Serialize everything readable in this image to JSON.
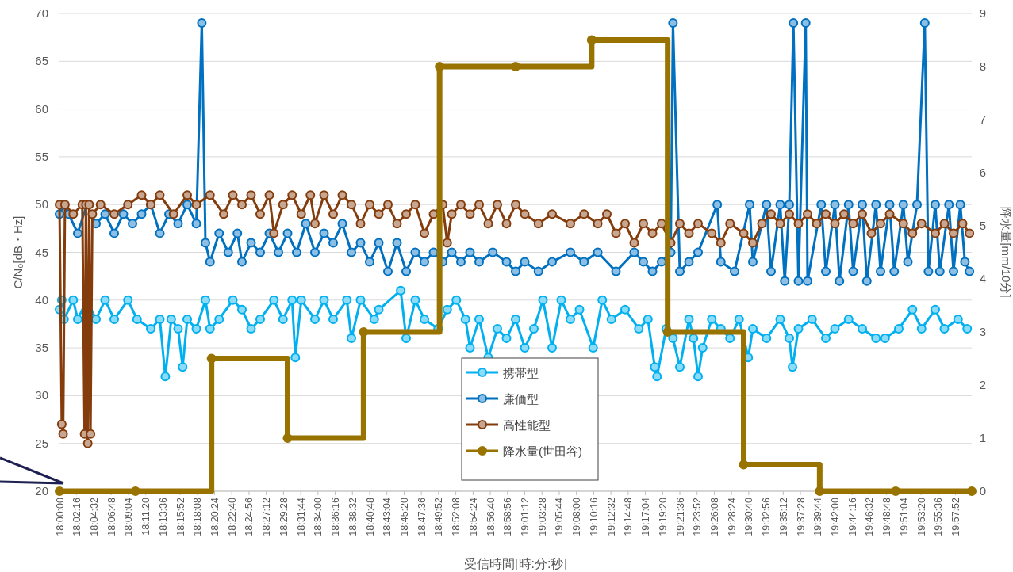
{
  "chart_data": {
    "type": "line",
    "xlabel": "受信時間[時:分:秒]",
    "ylabel": "C/N₀[dB・Hz]",
    "y2label": "降水量[mm/10分]",
    "xlim": [
      18,
      20
    ],
    "xticks": [
      {
        "value": 18,
        "label": "18:00:00"
      },
      {
        "value": 18.0378,
        "label": "18:02:16"
      },
      {
        "value": 18.0756,
        "label": "18:04:32"
      },
      {
        "value": 18.1133,
        "label": "18:06:48"
      },
      {
        "value": 18.1511,
        "label": "18:09:04"
      },
      {
        "value": 18.1889,
        "label": "18:11:20"
      },
      {
        "value": 18.2267,
        "label": "18:13:36"
      },
      {
        "value": 18.2644,
        "label": "18:15:52"
      },
      {
        "value": 18.3022,
        "label": "18:18:08"
      },
      {
        "value": 18.34,
        "label": "18:20:24"
      },
      {
        "value": 18.3778,
        "label": "18:22:40"
      },
      {
        "value": 18.4156,
        "label": "18:24:56"
      },
      {
        "value": 18.4533,
        "label": "18:27:12"
      },
      {
        "value": 18.4911,
        "label": "18:29:28"
      },
      {
        "value": 18.5289,
        "label": "18:31:44"
      },
      {
        "value": 18.5667,
        "label": "18:34:00"
      },
      {
        "value": 18.6044,
        "label": "18:36:16"
      },
      {
        "value": 18.6422,
        "label": "18:38:32"
      },
      {
        "value": 18.68,
        "label": "18:40:48"
      },
      {
        "value": 18.7178,
        "label": "18:43:04"
      },
      {
        "value": 18.7556,
        "label": "18:45:20"
      },
      {
        "value": 18.7933,
        "label": "18:47:36"
      },
      {
        "value": 18.8311,
        "label": "18:49:52"
      },
      {
        "value": 18.8689,
        "label": "18:52:08"
      },
      {
        "value": 18.9067,
        "label": "18:54:24"
      },
      {
        "value": 18.9444,
        "label": "18:56:40"
      },
      {
        "value": 18.9822,
        "label": "18:58:56"
      },
      {
        "value": 19.02,
        "label": "19:01:12"
      },
      {
        "value": 19.0578,
        "label": "19:03:28"
      },
      {
        "value": 19.0956,
        "label": "19:05:44"
      },
      {
        "value": 19.1333,
        "label": "19:08:00"
      },
      {
        "value": 19.1711,
        "label": "19:10:16"
      },
      {
        "value": 19.2089,
        "label": "19:12:32"
      },
      {
        "value": 19.2467,
        "label": "19:14:48"
      },
      {
        "value": 19.2844,
        "label": "19:17:04"
      },
      {
        "value": 19.3222,
        "label": "19:19:20"
      },
      {
        "value": 19.36,
        "label": "19:21:36"
      },
      {
        "value": 19.3978,
        "label": "19:23:52"
      },
      {
        "value": 19.4356,
        "label": "19:26:08"
      },
      {
        "value": 19.4733,
        "label": "19:28:24"
      },
      {
        "value": 19.5111,
        "label": "19:30:40"
      },
      {
        "value": 19.5489,
        "label": "19:32:56"
      },
      {
        "value": 19.5867,
        "label": "19:35:12"
      },
      {
        "value": 19.6244,
        "label": "19:37:28"
      },
      {
        "value": 19.6622,
        "label": "19:39:44"
      },
      {
        "value": 19.7,
        "label": "19:42:00"
      },
      {
        "value": 19.7378,
        "label": "19:44:16"
      },
      {
        "value": 19.7756,
        "label": "19:46:32"
      },
      {
        "value": 19.8133,
        "label": "19:48:48"
      },
      {
        "value": 19.8511,
        "label": "19:51:04"
      },
      {
        "value": 19.8889,
        "label": "19:53:20"
      },
      {
        "value": 19.9267,
        "label": "19:55:36"
      },
      {
        "value": 19.9644,
        "label": "19:57:52"
      }
    ],
    "ylim": [
      20,
      70
    ],
    "yticks": [
      20,
      25,
      30,
      35,
      40,
      45,
      50,
      55,
      60,
      65,
      70
    ],
    "y2lim": [
      0,
      9
    ],
    "y2ticks": [
      0,
      1,
      2,
      3,
      4,
      5,
      6,
      7,
      8,
      9
    ],
    "grid": "y",
    "legend": "bottom",
    "marker": "circle",
    "series": [
      {
        "name": "携帯型",
        "color": "#00b0f0",
        "x": [
          18,
          18.005,
          18.01,
          18.03,
          18.04,
          18.06,
          18.08,
          18.1,
          18.12,
          18.15,
          18.17,
          18.2,
          18.22,
          18.232,
          18.245,
          18.26,
          18.27,
          18.28,
          18.3,
          18.32,
          18.33,
          18.35,
          18.38,
          18.4,
          18.42,
          18.44,
          18.47,
          18.49,
          18.51,
          18.517,
          18.53,
          18.56,
          18.58,
          18.6,
          18.63,
          18.64,
          18.66,
          18.69,
          18.7,
          18.748,
          18.76,
          18.78,
          18.8,
          18.83,
          18.85,
          18.87,
          18.89,
          18.9,
          18.92,
          18.94,
          18.96,
          18.98,
          19,
          19.02,
          19.04,
          19.06,
          19.08,
          19.1,
          19.12,
          19.14,
          19.17,
          19.19,
          19.21,
          19.24,
          19.27,
          19.29,
          19.305,
          19.31,
          19.33,
          19.345,
          19.36,
          19.38,
          19.39,
          19.4,
          19.41,
          19.43,
          19.45,
          19.47,
          19.49,
          19.51,
          19.52,
          19.55,
          19.58,
          19.6,
          19.607,
          19.62,
          19.65,
          19.68,
          19.7,
          19.73,
          19.76,
          19.79,
          19.81,
          19.84,
          19.87,
          19.89,
          19.92,
          19.94,
          19.97,
          19.99
        ],
        "values": [
          39,
          40,
          38,
          40,
          38,
          40,
          38,
          40,
          38,
          40,
          38,
          37,
          38,
          32,
          38,
          37,
          33,
          38,
          37,
          40,
          37,
          38,
          40,
          39,
          37,
          38,
          40,
          38,
          40,
          34,
          40,
          38,
          40,
          38,
          40,
          36,
          40,
          38,
          39,
          41,
          36,
          40,
          38,
          37,
          39,
          40,
          38,
          35,
          38,
          34,
          37,
          36,
          38,
          35,
          37,
          40,
          35,
          40,
          38,
          39,
          35,
          40,
          38,
          39,
          37,
          38,
          33,
          32,
          37,
          36,
          33,
          38,
          36,
          32,
          35,
          38,
          37,
          36,
          38,
          34,
          37,
          36,
          38,
          36,
          33,
          37,
          38,
          36,
          37,
          38,
          37,
          36,
          36,
          37,
          39,
          37,
          39,
          37,
          38,
          37
        ]
      },
      {
        "name": "廉価型",
        "color": "#0070c0",
        "x": [
          18,
          18.01,
          18.02,
          18.04,
          18.06,
          18.08,
          18.1,
          18.12,
          18.14,
          18.16,
          18.18,
          18.2,
          18.22,
          18.24,
          18.26,
          18.28,
          18.3,
          18.312,
          18.32,
          18.33,
          18.35,
          18.37,
          18.39,
          18.4,
          18.42,
          18.44,
          18.46,
          18.48,
          18.5,
          18.52,
          18.54,
          18.56,
          18.58,
          18.6,
          18.62,
          18.64,
          18.66,
          18.68,
          18.7,
          18.72,
          18.74,
          18.76,
          18.78,
          18.8,
          18.82,
          18.84,
          18.86,
          18.88,
          18.9,
          18.92,
          18.95,
          18.98,
          19,
          19.02,
          19.05,
          19.08,
          19.12,
          19.15,
          19.18,
          19.22,
          19.26,
          19.28,
          19.3,
          19.32,
          19.34,
          19.345,
          19.36,
          19.38,
          19.4,
          19.442,
          19.45,
          19.48,
          19.513,
          19.52,
          19.55,
          19.56,
          19.58,
          19.59,
          19.6,
          19.609,
          19.62,
          19.636,
          19.64,
          19.67,
          19.68,
          19.7,
          19.71,
          19.73,
          19.74,
          19.76,
          19.77,
          19.79,
          19.8,
          19.82,
          19.83,
          19.85,
          19.86,
          19.88,
          19.897,
          19.905,
          19.92,
          19.93,
          19.95,
          19.96,
          19.975,
          19.985,
          19.995
        ],
        "values": [
          49,
          50,
          49,
          47,
          50,
          48,
          49,
          47,
          49,
          48,
          49,
          50,
          47,
          49,
          48,
          50,
          48,
          69,
          46,
          44,
          47,
          45,
          47,
          44,
          46,
          45,
          47,
          45,
          47,
          45,
          48,
          45,
          47,
          46,
          48,
          45,
          46,
          44,
          46,
          43,
          46,
          43,
          45,
          44,
          45,
          44,
          45,
          44,
          45,
          44,
          45,
          44,
          43,
          44,
          43,
          44,
          45,
          44,
          45,
          43,
          45,
          44,
          43,
          44,
          45,
          69,
          43,
          44,
          45,
          50,
          44,
          43,
          50,
          44,
          50,
          43,
          50,
          42,
          50,
          69,
          42,
          69,
          42,
          50,
          43,
          50,
          42,
          50,
          43,
          50,
          42,
          50,
          43,
          50,
          43,
          50,
          44,
          50,
          69,
          43,
          50,
          43,
          50,
          43,
          50,
          44,
          43
        ]
      },
      {
        "name": "高性能型",
        "color": "#843c0c",
        "x": [
          18,
          18.005,
          18.008,
          18.012,
          18.03,
          18.05,
          18.055,
          18.058,
          18.062,
          18.065,
          18.068,
          18.072,
          18.09,
          18.12,
          18.15,
          18.18,
          18.2,
          18.22,
          18.25,
          18.28,
          18.3,
          18.33,
          18.36,
          18.38,
          18.4,
          18.42,
          18.44,
          18.46,
          18.47,
          18.49,
          18.51,
          18.53,
          18.55,
          18.56,
          18.58,
          18.6,
          18.62,
          18.64,
          18.66,
          18.68,
          18.7,
          18.72,
          18.74,
          18.76,
          18.78,
          18.8,
          18.82,
          18.84,
          18.85,
          18.86,
          18.88,
          18.9,
          18.92,
          18.94,
          18.96,
          18.98,
          19,
          19.02,
          19.05,
          19.08,
          19.12,
          19.15,
          19.18,
          19.2,
          19.22,
          19.24,
          19.26,
          19.28,
          19.3,
          19.32,
          19.34,
          19.36,
          19.38,
          19.4,
          19.43,
          19.45,
          19.47,
          19.5,
          19.52,
          19.54,
          19.56,
          19.58,
          19.6,
          19.62,
          19.64,
          19.66,
          19.68,
          19.7,
          19.72,
          19.74,
          19.76,
          19.78,
          19.8,
          19.82,
          19.85,
          19.87,
          19.89,
          19.92,
          19.94,
          19.96,
          19.98,
          19.995
        ],
        "values": [
          50,
          27,
          26,
          50,
          49,
          50,
          26,
          50,
          25,
          50,
          26,
          49,
          50,
          49,
          50,
          51,
          50,
          51,
          49,
          51,
          50,
          51,
          49,
          51,
          50,
          51,
          49,
          51,
          47,
          50,
          51,
          49,
          51,
          48,
          51,
          49,
          51,
          50,
          48,
          50,
          49,
          50,
          48,
          49,
          50,
          47,
          49,
          50,
          46,
          49,
          50,
          49,
          50,
          48,
          50,
          48,
          50,
          49,
          48,
          49,
          48,
          49,
          48,
          49,
          47,
          48,
          46,
          48,
          47,
          48,
          46,
          48,
          47,
          48,
          47,
          46,
          48,
          47,
          46,
          48,
          49,
          48,
          49,
          48,
          49,
          48,
          49,
          48,
          49,
          48,
          49,
          47,
          48,
          49,
          48,
          47,
          48,
          47,
          48,
          47,
          48,
          47
        ]
      },
      {
        "name": "降水量(世田谷)",
        "color": "#997300",
        "type": "step",
        "axis": "y2",
        "x": [
          18,
          18.1667,
          18.3333,
          18.5,
          18.6667,
          18.8333,
          19,
          19.1667,
          19.3333,
          19.5,
          19.6667,
          19.8333,
          20
        ],
        "values": [
          0,
          0,
          2.5,
          1,
          3,
          8,
          8,
          8.5,
          3,
          0.5,
          0,
          0,
          0
        ]
      }
    ]
  }
}
